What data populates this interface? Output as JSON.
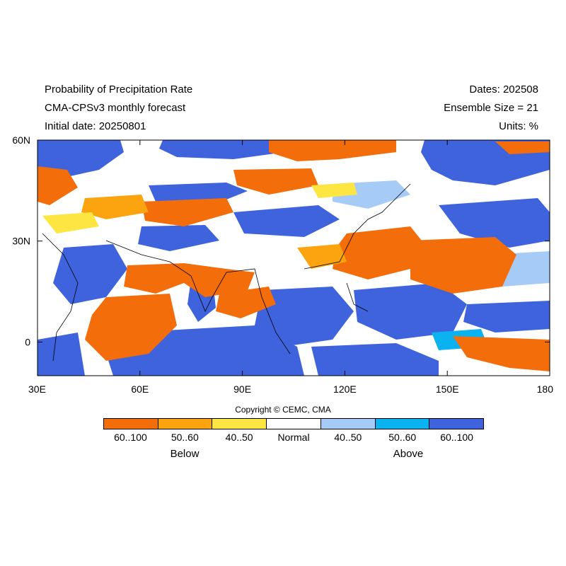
{
  "header": {
    "title": "Probability of Precipitation Rate",
    "model": "CMA-CPSv3 monthly forecast",
    "initial_date": "Initial date: 20250801",
    "dates": "Dates: 202508",
    "ensemble": "Ensemble Size = 21",
    "units": "Units: %"
  },
  "map": {
    "lon_range": [
      30,
      180
    ],
    "lat_range": [
      -10,
      60
    ],
    "x_ticks": [
      "30E",
      "60E",
      "90E",
      "120E",
      "150E",
      "180"
    ],
    "x_tick_values": [
      30,
      60,
      90,
      120,
      150,
      180
    ],
    "y_ticks": [
      "60N",
      "30N",
      "0"
    ],
    "y_tick_values": [
      60,
      30,
      0
    ]
  },
  "copyright": "Copyright © CEMC, CMA",
  "legend": {
    "boxes": [
      {
        "label": "60..100",
        "color": "#f46d0b"
      },
      {
        "label": "50..60",
        "color": "#fba40f"
      },
      {
        "label": "40..50",
        "color": "#fde642"
      },
      {
        "label": "Normal",
        "color": "#ffffff"
      },
      {
        "label": "40..50",
        "color": "#a7cbf7"
      },
      {
        "label": "50..60",
        "color": "#0ab3f0"
      },
      {
        "label": "60..100",
        "color": "#3e63dd"
      }
    ],
    "below_label": "Below",
    "above_label": "Above"
  }
}
